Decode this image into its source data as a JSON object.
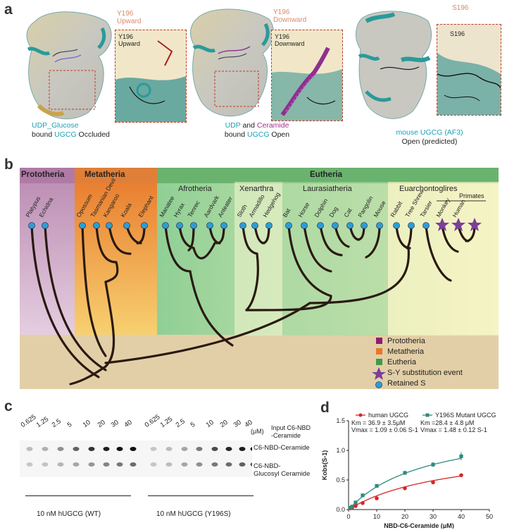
{
  "panel_a": {
    "label": "a",
    "s1": {
      "inset_title_l1": "Y196",
      "inset_title_l2": "Upward",
      "inset_label_l1": "Y196",
      "inset_label_l2": "Upward",
      "cap_l1_part1": "UDP_Glucose",
      "cap_l2_part1": "bound ",
      "cap_l2_part2": "UGCG",
      "cap_l2_part3": " Occluded"
    },
    "s2": {
      "inset_title_l1": "Y196",
      "inset_title_l2": "Downward",
      "inset_label_l1": "Y196",
      "inset_label_l2": "Downward",
      "cap_l1_part1": "UDP",
      "cap_l1_part2": " and ",
      "cap_l1_part3": "Ceramide",
      "cap_l2_part1": "bound ",
      "cap_l2_part2": "UGCG",
      "cap_l2_part3": " Open"
    },
    "s3": {
      "inset_title_l1": "S196",
      "inset_label_l1": "S196",
      "cap_l1_part1": "mouse UGCG (AF3)",
      "cap_l2_part1": "Open (predicted)"
    }
  },
  "panel_b": {
    "label": "b",
    "clades": {
      "prototheria": "Prototheria",
      "metatheria": "Metatheria",
      "eutheria": "Eutheria",
      "afrotheria": "Afrotheria",
      "xenarthra": "Xenarthra",
      "laurasiatheria": "Laurasiatheria",
      "euarchontoglires": "Euarchontoglires",
      "primates": "Primates"
    },
    "species": [
      "Platypus",
      "Echidna",
      "Opossum",
      "Tasmanian Devil",
      "Kangaroo",
      "Koala",
      "Elephant",
      "Manatee",
      "Hyrax",
      "Tenrec",
      "Aardvark",
      "Anteater",
      "Sloth",
      "Armadillo",
      "Hedgehog",
      "Bat",
      "Horse",
      "Dolphin",
      "Dog",
      "Cat",
      "Pangolin",
      "Mouse",
      "Rabbit",
      "Tree Shrew",
      "Tarsier",
      "Monkey",
      "Human"
    ],
    "legend": {
      "prototheria": "Prototheria",
      "metatheria": "Metatheria",
      "eutheria": "Eutheria",
      "sy": "S-Y substitution event",
      "retained": "Retained S"
    },
    "colors": {
      "prototheria": "#8e1f6b",
      "metatheria": "#e8772a",
      "eutheria": "#3f9a4b",
      "star": "#7b3f98",
      "retained": "#2a9fd6"
    }
  },
  "panel_c": {
    "label": "c",
    "concentrations": [
      "0.625",
      "1.25",
      "2.5",
      "5",
      "10",
      "20",
      "30",
      "40"
    ],
    "unit": "(μM)",
    "input_l1": "Input C6-NBD",
    "input_l2": "-Ceramide",
    "band1": "C6-NBD-Ceramide",
    "band2_l1": "C6-NBD-",
    "band2_l2": "Glucosyl Ceramide",
    "wt": "10 nM hUGCG (WT)",
    "mut": "10 nM hUGCG (Y196S)"
  },
  "panel_d": {
    "label": "d",
    "chart_data": {
      "type": "scatter",
      "xlabel": "NBD-C6-Ceramide (μM)",
      "ylabel": "Kobs(S-1)",
      "xlim": [
        0,
        50
      ],
      "ylim": [
        0,
        1.5
      ],
      "xticks": [
        "0",
        "10",
        "20",
        "30",
        "40",
        "50"
      ],
      "yticks": [
        "0.0",
        "0.5",
        "1.0",
        "1.5"
      ],
      "series": [
        {
          "name": "human UGCG",
          "color": "#d62728",
          "x": [
            0.625,
            1.25,
            2.5,
            5,
            10,
            20,
            30,
            40
          ],
          "y": [
            0.02,
            0.03,
            0.06,
            0.11,
            0.19,
            0.36,
            0.46,
            0.58
          ],
          "err": [
            0.01,
            0.01,
            0.01,
            0.01,
            0.02,
            0.03,
            0.02,
            0.02
          ],
          "km": 36.9,
          "vmax": 1.09
        },
        {
          "name": "Y196S Mutant UGCG",
          "color": "#2e8b7f",
          "x": [
            0.625,
            1.25,
            2.5,
            5,
            10,
            20,
            30,
            40
          ],
          "y": [
            0.03,
            0.05,
            0.12,
            0.24,
            0.4,
            0.62,
            0.76,
            0.9
          ],
          "err": [
            0.01,
            0.01,
            0.02,
            0.02,
            0.03,
            0.03,
            0.04,
            0.07
          ],
          "km": 28.4,
          "vmax": 1.48
        }
      ],
      "annotations": {
        "s1_km": "Km = 36.9 ± 3.5μM",
        "s1_vmax": "Vmax = 1.09 ± 0.06 S-1",
        "s2_km": "Km =28.4 ± 4.8 μM",
        "s2_vmax": "Vmax = 1.48 ± 0.12 S-1"
      }
    }
  }
}
